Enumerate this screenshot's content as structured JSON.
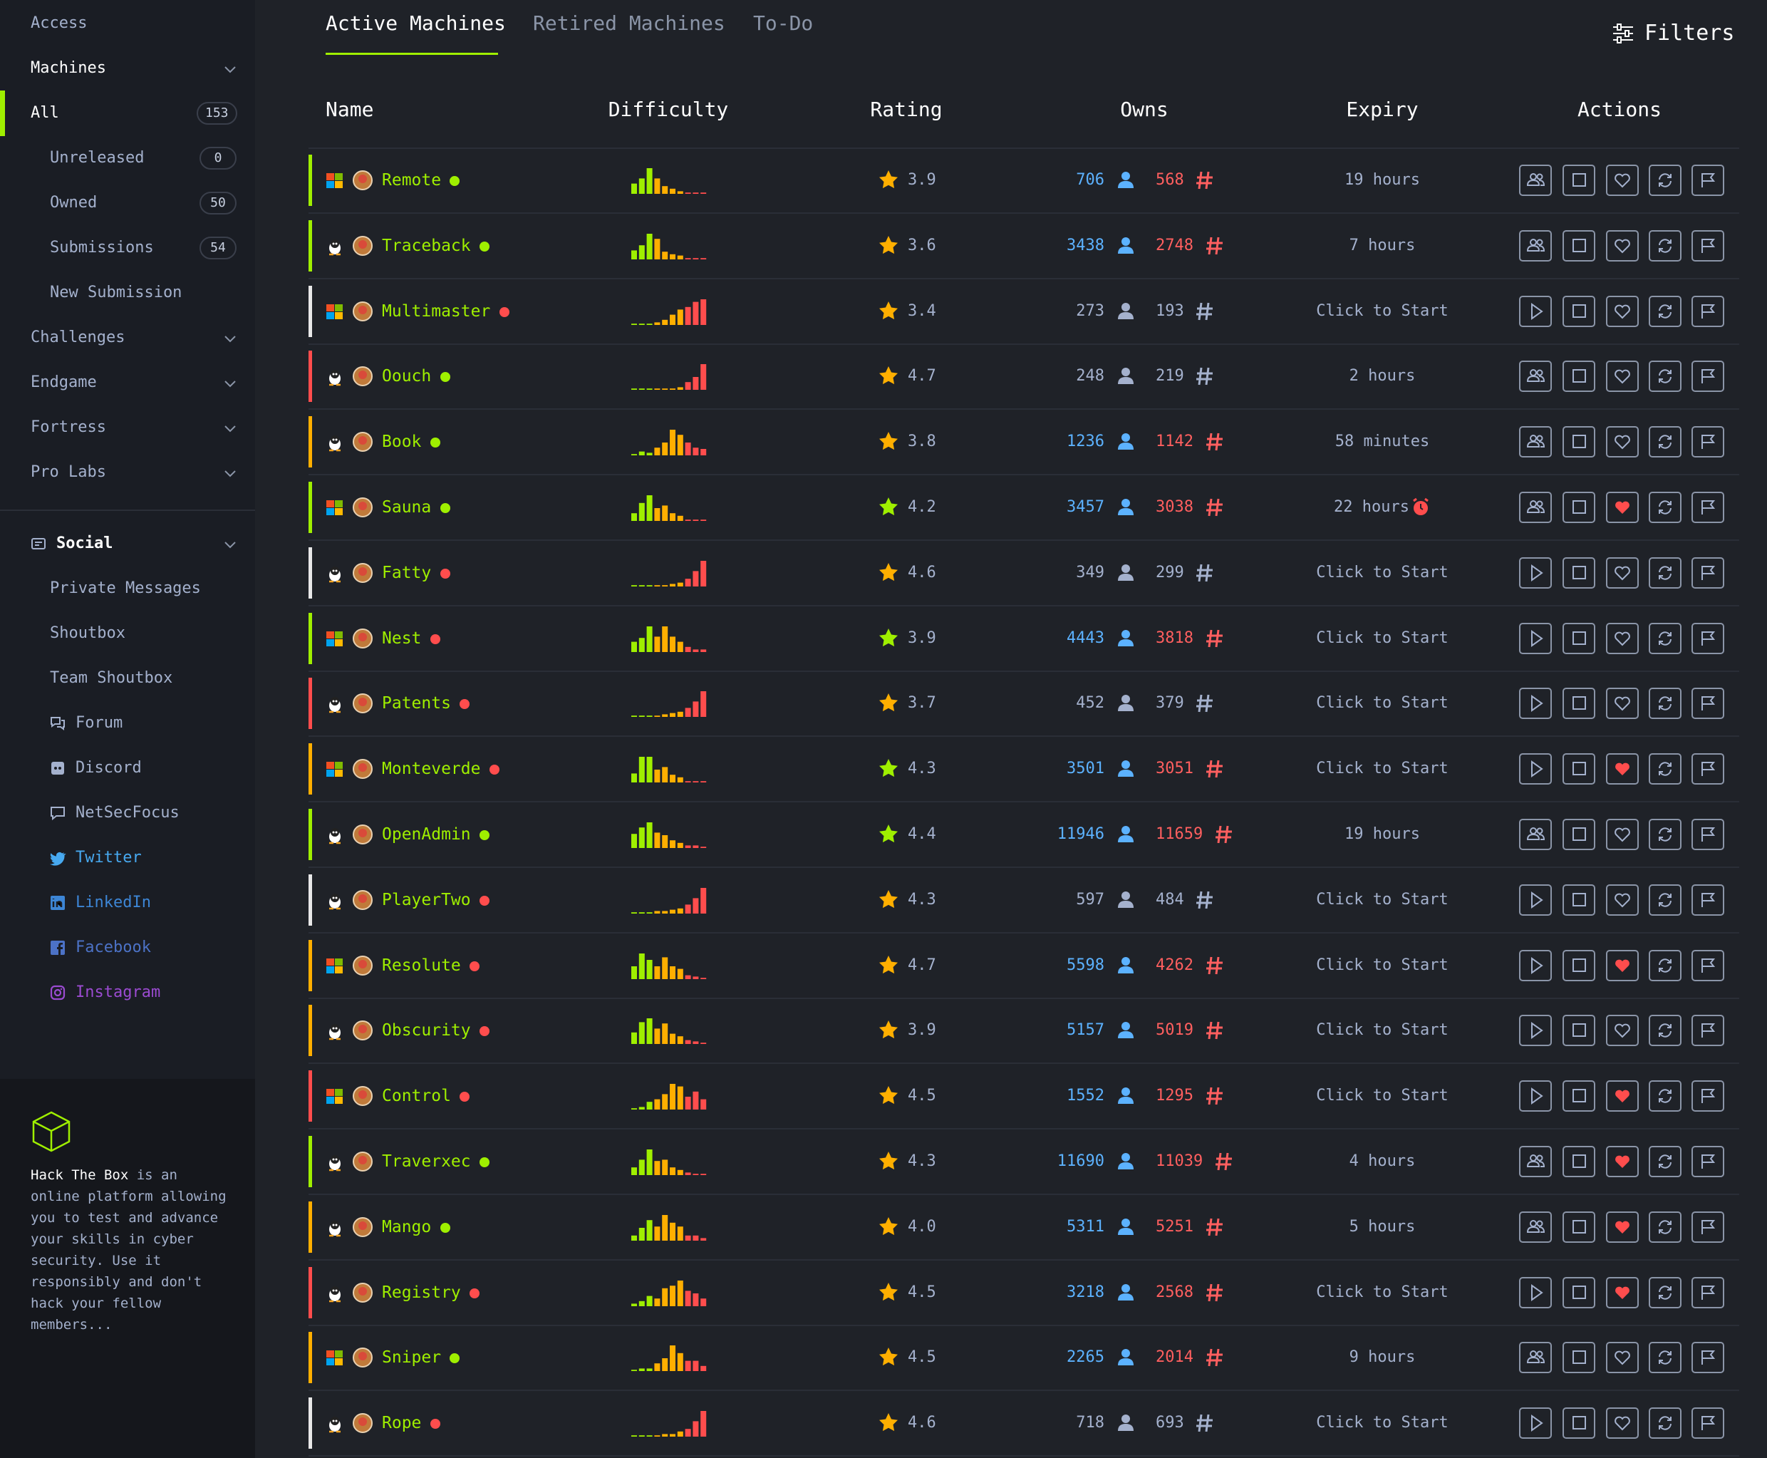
{
  "sidebar": {
    "items": [
      {
        "label": "Access",
        "level": 1
      },
      {
        "label": "Machines",
        "level": 1,
        "expandable": true,
        "bright": true
      },
      {
        "label": "All",
        "level": 1,
        "count": 153,
        "active": true
      },
      {
        "label": "Unreleased",
        "level": 2,
        "count": 0
      },
      {
        "label": "Owned",
        "level": 2,
        "count": 50
      },
      {
        "label": "Submissions",
        "level": 2,
        "count": 54
      },
      {
        "label": "New Submission",
        "level": 2
      },
      {
        "label": "Challenges",
        "level": 1,
        "expandable": true
      },
      {
        "label": "Endgame",
        "level": 1,
        "expandable": true
      },
      {
        "label": "Fortress",
        "level": 1,
        "expandable": true
      },
      {
        "label": "Pro Labs",
        "level": 1,
        "expandable": true
      },
      {
        "label": "Social",
        "level": 1,
        "expandable": true,
        "bright": true,
        "icon": "social",
        "section": true
      },
      {
        "label": "Private Messages",
        "level": 2
      },
      {
        "label": "Shoutbox",
        "level": 2
      },
      {
        "label": "Team Shoutbox",
        "level": 2
      },
      {
        "label": "Forum",
        "level": 2,
        "icon": "forum"
      },
      {
        "label": "Discord",
        "level": 2,
        "icon": "discord"
      },
      {
        "label": "NetSecFocus",
        "level": 2,
        "icon": "chat"
      },
      {
        "label": "Twitter",
        "level": 2,
        "icon": "twitter",
        "color": "#47a9f0"
      },
      {
        "label": "LinkedIn",
        "level": 2,
        "icon": "linkedin",
        "color": "#3d86d6"
      },
      {
        "label": "Facebook",
        "level": 2,
        "icon": "facebook",
        "color": "#4c72c6"
      },
      {
        "label": "Instagram",
        "level": 2,
        "icon": "instagram",
        "color": "#9b4bd1"
      }
    ]
  },
  "footer": {
    "brand": "Hack The Box",
    "text": "is an online platform allowing you to test and advance your skills in cyber security. Use it responsibly and don't hack your fellow members..."
  },
  "tabs": {
    "items": [
      "Active Machines",
      "Retired Machines",
      "To-Do"
    ],
    "active": 0,
    "filters": "Filters"
  },
  "table": {
    "headers": [
      "Name",
      "Difficulty",
      "Rating",
      "Owns",
      "Expiry",
      "Actions"
    ],
    "rows": [
      {
        "name": "Remote",
        "os": "windows",
        "color": "#9fef00",
        "dot_color": "#9fef00",
        "difficulty": [
          40,
          60,
          100,
          60,
          30,
          20,
          10,
          5,
          5,
          5
        ],
        "rating": 3.9,
        "users": 706,
        "systems": 568,
        "owned": true,
        "expiry": "19 hours",
        "spawned": true,
        "favorite": false
      },
      {
        "name": "Traceback",
        "os": "linux",
        "color": "#9fef00",
        "dot_color": "#9fef00",
        "difficulty": [
          35,
          55,
          100,
          80,
          30,
          20,
          15,
          5,
          5,
          5
        ],
        "rating": 3.6,
        "users": 3438,
        "systems": 2748,
        "owned": true,
        "expiry": "7 hours",
        "spawned": true,
        "favorite": false
      },
      {
        "name": "Multimaster",
        "os": "windows",
        "color": "#e8e8e8",
        "dot_color": "#ff4d4d",
        "difficulty": [
          5,
          5,
          5,
          10,
          20,
          40,
          60,
          70,
          90,
          100
        ],
        "rating": 3.4,
        "users": 273,
        "systems": 193,
        "owned": false,
        "expiry": "Click to Start",
        "spawned": false,
        "favorite": false
      },
      {
        "name": "Oouch",
        "os": "linux",
        "color": "#ff4d4d",
        "dot_color": "#9fef00",
        "difficulty": [
          5,
          5,
          5,
          5,
          5,
          5,
          10,
          30,
          50,
          100
        ],
        "rating": 4.7,
        "users": 248,
        "systems": 219,
        "owned": false,
        "expiry": "2 hours",
        "spawned": true,
        "favorite": false
      },
      {
        "name": "Book",
        "os": "linux",
        "color": "#ffaf00",
        "dot_color": "#9fef00",
        "difficulty": [
          5,
          15,
          10,
          30,
          50,
          100,
          80,
          50,
          30,
          25
        ],
        "rating": 3.8,
        "users": 1236,
        "systems": 1142,
        "owned": true,
        "expiry": "58 minutes",
        "spawned": true,
        "favorite": false
      },
      {
        "name": "Sauna",
        "os": "windows",
        "color": "#9fef00",
        "dot_color": "#9fef00",
        "difficulty": [
          30,
          70,
          100,
          50,
          60,
          30,
          20,
          5,
          5,
          5
        ],
        "rating": 4.2,
        "rated": true,
        "users": 3457,
        "systems": 3038,
        "owned": true,
        "expiry": "22 hours",
        "alarm": true,
        "spawned": true,
        "favorite": true
      },
      {
        "name": "Fatty",
        "os": "linux",
        "color": "#e8e8e8",
        "dot_color": "#ff4d4d",
        "difficulty": [
          5,
          5,
          5,
          5,
          5,
          10,
          15,
          30,
          60,
          100
        ],
        "rating": 4.6,
        "users": 349,
        "systems": 299,
        "owned": false,
        "expiry": "Click to Start",
        "spawned": false,
        "favorite": false
      },
      {
        "name": "Nest",
        "os": "windows",
        "color": "#9fef00",
        "dot_color": "#ff4d4d",
        "difficulty": [
          40,
          55,
          100,
          60,
          100,
          60,
          40,
          20,
          10,
          10
        ],
        "rating": 3.9,
        "rated": true,
        "users": 4443,
        "systems": 3818,
        "owned": true,
        "expiry": "Click to Start",
        "spawned": false,
        "favorite": false
      },
      {
        "name": "Patents",
        "os": "linux",
        "color": "#ff4d4d",
        "dot_color": "#ff4d4d",
        "difficulty": [
          5,
          5,
          5,
          5,
          10,
          15,
          20,
          35,
          60,
          100
        ],
        "rating": 3.7,
        "users": 452,
        "systems": 379,
        "owned": false,
        "expiry": "Click to Start",
        "spawned": false,
        "favorite": false
      },
      {
        "name": "Monteverde",
        "os": "windows",
        "color": "#ffaf00",
        "dot_color": "#ff4d4d",
        "difficulty": [
          35,
          100,
          100,
          50,
          60,
          30,
          20,
          5,
          5,
          5
        ],
        "rating": 4.3,
        "rated": true,
        "users": 3501,
        "systems": 3051,
        "owned": true,
        "expiry": "Click to Start",
        "spawned": false,
        "favorite": true
      },
      {
        "name": "OpenAdmin",
        "os": "linux",
        "color": "#9fef00",
        "dot_color": "#9fef00",
        "difficulty": [
          55,
          80,
          100,
          60,
          50,
          30,
          20,
          10,
          10,
          5
        ],
        "rating": 4.4,
        "rated": true,
        "users": 11946,
        "systems": 11659,
        "owned": true,
        "expiry": "19 hours",
        "spawned": true,
        "favorite": false
      },
      {
        "name": "PlayerTwo",
        "os": "linux",
        "color": "#e8e8e8",
        "dot_color": "#ff4d4d",
        "difficulty": [
          5,
          5,
          5,
          10,
          10,
          15,
          20,
          35,
          60,
          100
        ],
        "rating": 4.3,
        "users": 597,
        "systems": 484,
        "owned": false,
        "expiry": "Click to Start",
        "spawned": false,
        "favorite": false
      },
      {
        "name": "Resolute",
        "os": "windows",
        "color": "#ffaf00",
        "dot_color": "#ff4d4d",
        "difficulty": [
          50,
          100,
          75,
          50,
          85,
          50,
          40,
          15,
          10,
          5
        ],
        "rating": 4.7,
        "users": 5598,
        "systems": 4262,
        "owned": true,
        "expiry": "Click to Start",
        "spawned": false,
        "favorite": true
      },
      {
        "name": "Obscurity",
        "os": "linux",
        "color": "#ffaf00",
        "dot_color": "#ff4d4d",
        "difficulty": [
          45,
          85,
          100,
          60,
          80,
          40,
          30,
          15,
          10,
          5
        ],
        "rating": 3.9,
        "users": 5157,
        "systems": 5019,
        "owned": true,
        "expiry": "Click to Start",
        "spawned": false,
        "favorite": false
      },
      {
        "name": "Control",
        "os": "windows",
        "color": "#ff4d4d",
        "dot_color": "#ff4d4d",
        "difficulty": [
          5,
          10,
          30,
          40,
          60,
          100,
          90,
          50,
          70,
          40
        ],
        "rating": 4.5,
        "users": 1552,
        "systems": 1295,
        "owned": true,
        "expiry": "Click to Start",
        "spawned": false,
        "favorite": true
      },
      {
        "name": "Traverxec",
        "os": "linux",
        "color": "#9fef00",
        "dot_color": "#9fef00",
        "difficulty": [
          30,
          60,
          100,
          55,
          60,
          30,
          20,
          10,
          5,
          5
        ],
        "rating": 4.3,
        "users": 11690,
        "systems": 11039,
        "owned": true,
        "expiry": "4 hours",
        "spawned": true,
        "favorite": true
      },
      {
        "name": "Mango",
        "os": "linux",
        "color": "#ffaf00",
        "dot_color": "#9fef00",
        "difficulty": [
          20,
          50,
          80,
          55,
          100,
          70,
          55,
          20,
          20,
          10
        ],
        "rating": 4,
        "rating_label": "4.0",
        "users": 5311,
        "systems": 5251,
        "owned": true,
        "expiry": "5 hours",
        "spawned": true,
        "favorite": true
      },
      {
        "name": "Registry",
        "os": "linux",
        "color": "#ff4d4d",
        "dot_color": "#ff4d4d",
        "difficulty": [
          10,
          20,
          40,
          30,
          70,
          80,
          100,
          60,
          50,
          30
        ],
        "rating": 4.5,
        "users": 3218,
        "systems": 2568,
        "owned": true,
        "expiry": "Click to Start",
        "spawned": false,
        "favorite": true
      },
      {
        "name": "Sniper",
        "os": "windows",
        "color": "#ffaf00",
        "dot_color": "#9fef00",
        "difficulty": [
          5,
          10,
          10,
          30,
          50,
          100,
          70,
          40,
          40,
          20
        ],
        "rating": 4.5,
        "users": 2265,
        "systems": 2014,
        "owned": true,
        "expiry": "9 hours",
        "spawned": true,
        "favorite": false
      },
      {
        "name": "Rope",
        "os": "linux",
        "color": "#e8e8e8",
        "dot_color": "#ff4d4d",
        "difficulty": [
          5,
          5,
          5,
          5,
          10,
          10,
          20,
          30,
          60,
          100
        ],
        "rating": 4.6,
        "users": 718,
        "systems": 693,
        "owned": false,
        "expiry": "Click to Start",
        "spawned": false,
        "favorite": false
      }
    ]
  }
}
